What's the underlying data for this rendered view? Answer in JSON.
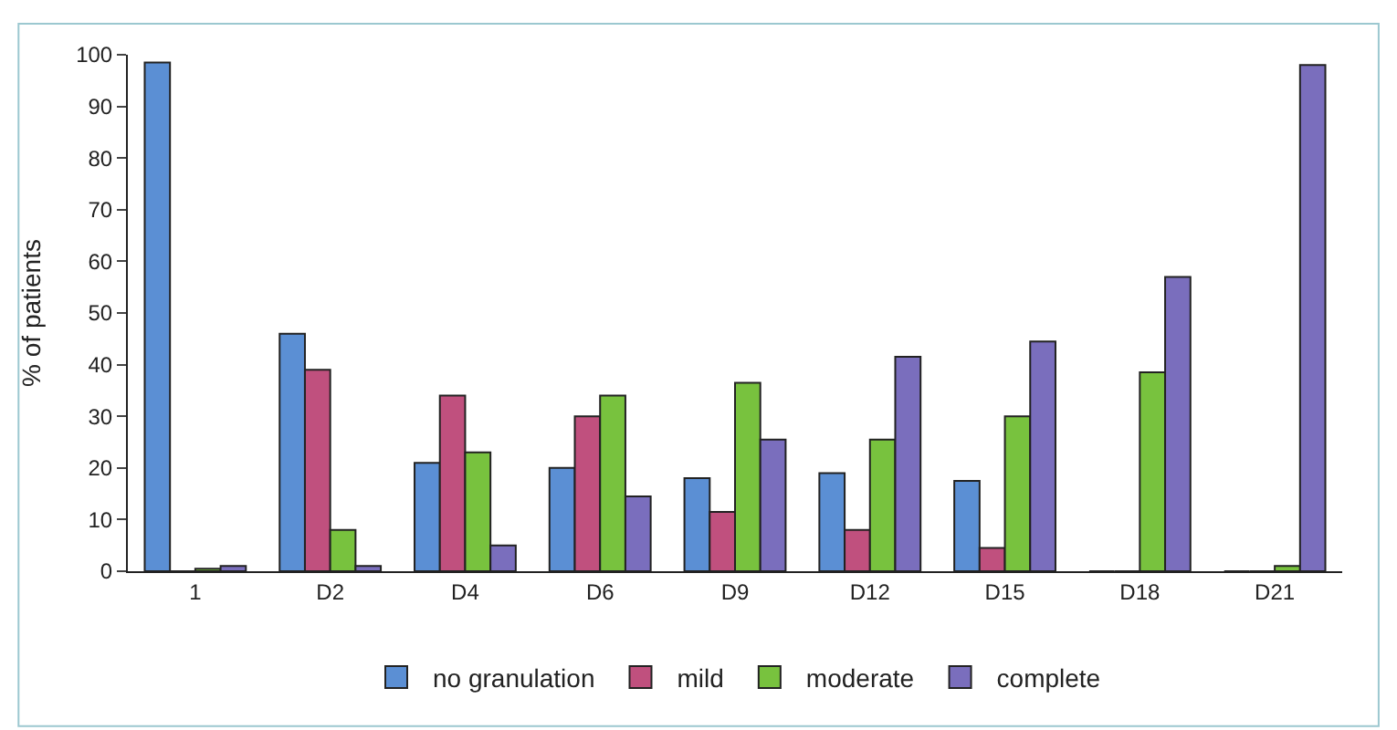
{
  "chart_data": {
    "type": "bar",
    "ylabel": "% of patients",
    "categories": [
      "1",
      "D2",
      "D4",
      "D6",
      "D9",
      "D12",
      "D15",
      "D18",
      "D21"
    ],
    "series": [
      {
        "name": "no granulation",
        "color": "#5b8fd4",
        "values": [
          98.5,
          46,
          21,
          20,
          18,
          19,
          17.5,
          0,
          0
        ]
      },
      {
        "name": "mild",
        "color": "#c0507e",
        "values": [
          0,
          39,
          34,
          30,
          11.5,
          8,
          4.5,
          0,
          0
        ]
      },
      {
        "name": "moderate",
        "color": "#78c23e",
        "values": [
          0.5,
          8,
          23,
          34,
          36.5,
          25.5,
          30,
          38.5,
          1
        ]
      },
      {
        "name": "complete",
        "color": "#7a6ebd",
        "values": [
          1,
          1,
          5,
          14.5,
          25.5,
          41.5,
          44.5,
          57,
          98
        ]
      }
    ],
    "ylim": [
      0,
      100
    ],
    "yticks": [
      0,
      10,
      20,
      30,
      40,
      50,
      60,
      70,
      80,
      90,
      100
    ],
    "legend": "bottom"
  }
}
